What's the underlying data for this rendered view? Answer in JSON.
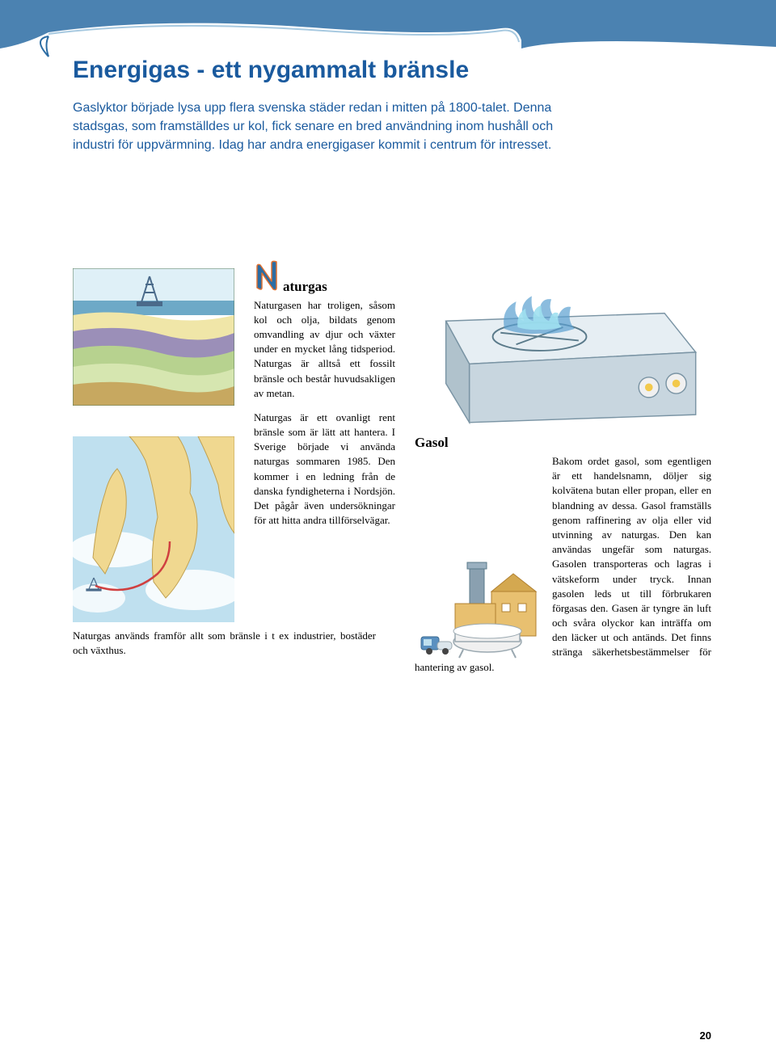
{
  "colors": {
    "title": "#1a5a9e",
    "intro": "#1a5a9e",
    "body": "#1a1a1a",
    "page_num": "#1a1a1a",
    "wave_dark": "#2b6ca3",
    "wave_light": "#a7c9e0",
    "dropcap_fill": "#2b6ca3",
    "dropcap_stroke": "#e07030"
  },
  "title": "Energigas - ett nygammalt bränsle",
  "intro": "Gaslyktor började lysa upp flera svenska städer redan i mitten på 1800-talet. Denna stadsgas, som framställdes ur kol, fick senare en bred användning inom hushåll och industri för uppvärmning. Idag har andra energigaser kommit i centrum för intresset.",
  "naturgas": {
    "heading_after_cap": "aturgas",
    "p1": "Naturgasen har troligen, såsom kol och olja, bildats genom omvandling av djur och växter under en mycket lång tidsperiod. Naturgas är alltså ett fossilt bränsle och består huvudsakligen av metan.",
    "p2": "Naturgas är ett ovanligt rent bränsle som är lätt att hantera. I Sverige började vi använda naturgas sommaren 1985. Den kommer i en ledning från de danska fyndigheterna i Nordsjön. Det pågår även undersökningar för att hitta andra tillförselvägar.",
    "p3": "Naturgas används framför allt som bränsle i t ex industrier, bostäder och växthus."
  },
  "gasol": {
    "heading": "Gasol",
    "body": "Bakom ordet gasol, som egentligen är ett handelsnamn, döljer sig kolvätena butan eller propan, eller en blandning av dessa. Gasol framställs genom raffinering av olja eller vid utvinning av naturgas. Den kan användas ungefär som naturgas. Gasolen transporteras och lagras i vätskeform under tryck. Innan gasolen leds ut till förbrukaren förgasas den. Gasen är tyngre än luft och svåra olyckor kan inträffa om den läcker ut och antänds. Det finns stränga säkerhetsbestämmelser för hantering av gasol."
  },
  "page_number": "20",
  "illustrations": {
    "strata": {
      "sky": "#dff0f7",
      "sea": "#6da9c7",
      "layers": [
        "#f0e6a8",
        "#9b8fb8",
        "#b7d28f",
        "#d6e6b0",
        "#c7a860"
      ],
      "rig": "#4a6a8a"
    },
    "map": {
      "land": "#f0d890",
      "sea": "#bfe0ef",
      "clouds": "#ffffff",
      "pipeline": "#d04040",
      "rig": "#4a6a8a"
    },
    "stove": {
      "top": "#e6eef3",
      "body": "#c8d6df",
      "knob": "#f2c94c",
      "flame_out": "#5aa0d0",
      "flame_in": "#9fe0f0"
    },
    "factory": {
      "building": "#e8c070",
      "roof": "#d4a850",
      "chimney": "#8aa0b0",
      "tank": "#f0f0f0",
      "truck": "#5a90c0"
    }
  }
}
